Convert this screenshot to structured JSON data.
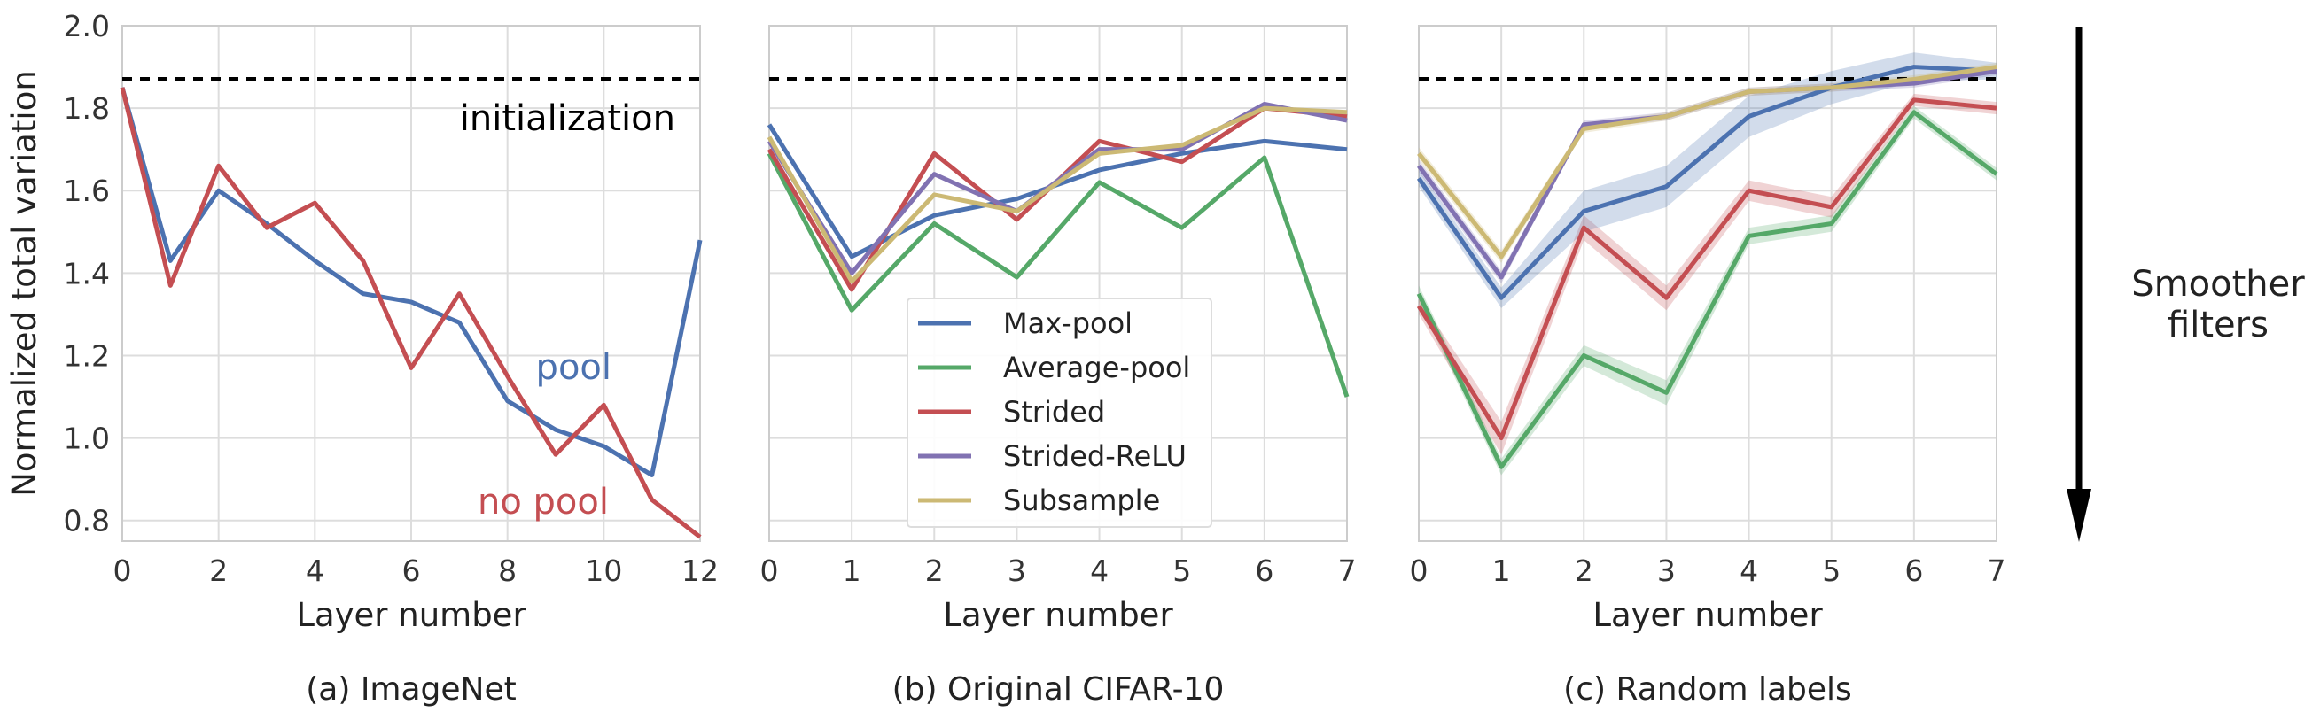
{
  "colors": {
    "max_pool": "#4c72b0",
    "average_pool": "#55a868",
    "strided": "#c44e52",
    "strided_relu": "#8172b2",
    "subsample": "#ccb974",
    "grid": "#dddddd",
    "init": "#000000"
  },
  "side_annotation": {
    "line1": "Smoother",
    "line2": "filters",
    "arrow": "down-arrow"
  },
  "chart_data": [
    {
      "type": "line",
      "caption": "(a) ImageNet",
      "xlabel": "Layer number",
      "ylabel": "Normalized total variation",
      "xlim": [
        0,
        12
      ],
      "ylim": [
        0.75,
        2.0
      ],
      "xticks": [
        0,
        2,
        4,
        6,
        8,
        10,
        12
      ],
      "yticks": [
        0.8,
        1.0,
        1.2,
        1.4,
        1.6,
        1.8,
        2.0
      ],
      "grid": true,
      "reference_line": {
        "y": 1.87,
        "label": "initialization"
      },
      "annotations": [
        {
          "text": "pool",
          "series": "pool"
        },
        {
          "text": "no pool",
          "series": "no pool"
        }
      ],
      "series": [
        {
          "name": "pool",
          "color": "#4c72b0",
          "x": [
            0,
            1,
            2,
            3,
            4,
            5,
            6,
            7,
            8,
            9,
            10,
            11,
            12
          ],
          "y": [
            1.85,
            1.43,
            1.6,
            1.52,
            1.43,
            1.35,
            1.33,
            1.28,
            1.09,
            1.02,
            0.98,
            0.91,
            1.48
          ]
        },
        {
          "name": "no pool",
          "color": "#c44e52",
          "x": [
            0,
            1,
            2,
            3,
            4,
            5,
            6,
            7,
            8,
            9,
            10,
            11,
            12
          ],
          "y": [
            1.85,
            1.37,
            1.66,
            1.51,
            1.57,
            1.43,
            1.17,
            1.35,
            1.15,
            0.96,
            1.08,
            0.85,
            0.76
          ]
        }
      ]
    },
    {
      "type": "line",
      "caption": "(b) Original CIFAR-10",
      "xlabel": "Layer number",
      "xlim": [
        0,
        7
      ],
      "ylim": [
        0.75,
        2.0
      ],
      "xticks": [
        0,
        1,
        2,
        3,
        4,
        5,
        6,
        7
      ],
      "grid": true,
      "reference_line": {
        "y": 1.87
      },
      "legend": {
        "placement": "lower-center"
      },
      "series": [
        {
          "name": "Max-pool",
          "color": "#4c72b0",
          "x": [
            0,
            1,
            2,
            3,
            4,
            5,
            6,
            7
          ],
          "y": [
            1.76,
            1.44,
            1.54,
            1.58,
            1.65,
            1.69,
            1.72,
            1.7
          ]
        },
        {
          "name": "Average-pool",
          "color": "#55a868",
          "x": [
            0,
            1,
            2,
            3,
            4,
            5,
            6,
            7
          ],
          "y": [
            1.69,
            1.31,
            1.52,
            1.39,
            1.62,
            1.51,
            1.68,
            1.1
          ]
        },
        {
          "name": "Strided",
          "color": "#c44e52",
          "x": [
            0,
            1,
            2,
            3,
            4,
            5,
            6,
            7
          ],
          "y": [
            1.7,
            1.36,
            1.69,
            1.53,
            1.72,
            1.67,
            1.8,
            1.78
          ]
        },
        {
          "name": "Strided-ReLU",
          "color": "#8172b2",
          "x": [
            0,
            1,
            2,
            3,
            4,
            5,
            6,
            7
          ],
          "y": [
            1.72,
            1.4,
            1.64,
            1.55,
            1.7,
            1.7,
            1.81,
            1.77
          ]
        },
        {
          "name": "Subsample",
          "color": "#ccb974",
          "x": [
            0,
            1,
            2,
            3,
            4,
            5,
            6,
            7
          ],
          "y": [
            1.73,
            1.38,
            1.59,
            1.55,
            1.69,
            1.71,
            1.8,
            1.79
          ]
        }
      ]
    },
    {
      "type": "area",
      "caption": "(c) Random labels",
      "xlabel": "Layer number",
      "xlim": [
        0,
        7
      ],
      "ylim": [
        0.75,
        2.0
      ],
      "xticks": [
        0,
        1,
        2,
        3,
        4,
        5,
        6,
        7
      ],
      "grid": true,
      "reference_line": {
        "y": 1.87
      },
      "series": [
        {
          "name": "Average-pool",
          "color": "#55a868",
          "x": [
            0,
            1,
            2,
            3,
            4,
            5,
            6,
            7
          ],
          "y": [
            1.35,
            0.93,
            1.2,
            1.11,
            1.49,
            1.52,
            1.79,
            1.64
          ],
          "band": [
            0.02,
            0.02,
            0.025,
            0.03,
            0.02,
            0.02,
            0.015,
            0.015
          ]
        },
        {
          "name": "Strided",
          "color": "#c44e52",
          "x": [
            0,
            1,
            2,
            3,
            4,
            5,
            6,
            7
          ],
          "y": [
            1.32,
            1.0,
            1.51,
            1.34,
            1.6,
            1.56,
            1.82,
            1.8
          ],
          "band": [
            0.02,
            0.04,
            0.03,
            0.03,
            0.025,
            0.025,
            0.015,
            0.015
          ]
        },
        {
          "name": "Max-pool",
          "color": "#4c72b0",
          "x": [
            0,
            1,
            2,
            3,
            4,
            5,
            6,
            7
          ],
          "y": [
            1.63,
            1.34,
            1.55,
            1.61,
            1.78,
            1.85,
            1.9,
            1.89
          ],
          "band": [
            0.02,
            0.025,
            0.05,
            0.05,
            0.05,
            0.04,
            0.035,
            0.02
          ]
        },
        {
          "name": "Strided-ReLU",
          "color": "#8172b2",
          "x": [
            0,
            1,
            2,
            3,
            4,
            5,
            6,
            7
          ],
          "y": [
            1.66,
            1.39,
            1.76,
            1.78,
            1.84,
            1.85,
            1.86,
            1.89
          ],
          "band": [
            0.015,
            0.015,
            0.01,
            0.01,
            0.01,
            0.01,
            0.01,
            0.01
          ]
        },
        {
          "name": "Subsample",
          "color": "#ccb974",
          "x": [
            0,
            1,
            2,
            3,
            4,
            5,
            6,
            7
          ],
          "y": [
            1.69,
            1.44,
            1.75,
            1.78,
            1.84,
            1.85,
            1.87,
            1.9
          ],
          "band": [
            0.015,
            0.015,
            0.01,
            0.01,
            0.01,
            0.01,
            0.01,
            0.01
          ]
        }
      ]
    }
  ]
}
